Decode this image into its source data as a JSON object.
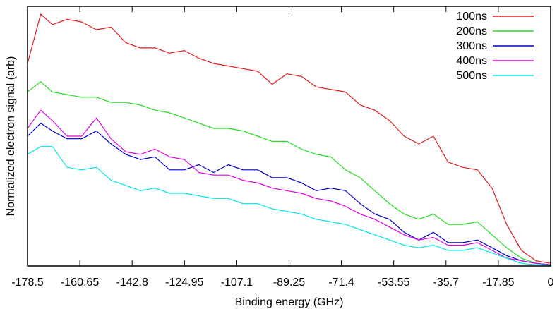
{
  "chart_data": {
    "type": "line",
    "title": "",
    "xlabel": "Binding energy (GHz)",
    "ylabel": "Normalized electron signal (arb)",
    "xlim": [
      -178.5,
      0
    ],
    "ylim": [
      0,
      1.0
    ],
    "x_ticks": [
      -178.5,
      -160.65,
      -142.8,
      -124.95,
      -107.1,
      -89.25,
      -71.4,
      -53.55,
      -35.7,
      -17.85,
      0
    ],
    "x_tick_labels": [
      "-178.5",
      "-160.65",
      "-142.8",
      "-124.95",
      "-107.1",
      "-89.25",
      "-71.4",
      "-53.55",
      "-35.7",
      "-17.85",
      "0"
    ],
    "y_tick_labels_shown": false,
    "grid": false,
    "legend_position": "top-right",
    "x": [
      -178.5,
      -174,
      -170,
      -165,
      -160,
      -155,
      -150,
      -145,
      -140,
      -135,
      -130,
      -125,
      -120,
      -115,
      -110,
      -105,
      -100,
      -95,
      -90,
      -85,
      -80,
      -75,
      -70,
      -65,
      -60,
      -55,
      -50,
      -45,
      -40,
      -35,
      -30,
      -25,
      -20,
      -15,
      -10,
      -5,
      0
    ],
    "series": [
      {
        "name": "100ns",
        "color": "#e31a1c",
        "values": [
          0.78,
          0.97,
          0.93,
          0.95,
          0.94,
          0.91,
          0.92,
          0.86,
          0.84,
          0.84,
          0.82,
          0.83,
          0.8,
          0.78,
          0.77,
          0.76,
          0.75,
          0.7,
          0.74,
          0.73,
          0.69,
          0.68,
          0.67,
          0.62,
          0.6,
          0.56,
          0.5,
          0.47,
          0.5,
          0.4,
          0.38,
          0.37,
          0.3,
          0.16,
          0.06,
          0.02,
          0.01
        ]
      },
      {
        "name": "200ns",
        "color": "#22dd22",
        "values": [
          0.67,
          0.71,
          0.67,
          0.66,
          0.65,
          0.65,
          0.63,
          0.63,
          0.62,
          0.6,
          0.59,
          0.57,
          0.55,
          0.53,
          0.53,
          0.52,
          0.5,
          0.48,
          0.48,
          0.45,
          0.43,
          0.42,
          0.37,
          0.34,
          0.29,
          0.24,
          0.2,
          0.18,
          0.2,
          0.16,
          0.16,
          0.17,
          0.12,
          0.07,
          0.03,
          0.01,
          0.005
        ]
      },
      {
        "name": "300ns",
        "color": "#0000cc",
        "values": [
          0.5,
          0.55,
          0.52,
          0.49,
          0.49,
          0.52,
          0.47,
          0.43,
          0.41,
          0.42,
          0.37,
          0.37,
          0.39,
          0.36,
          0.39,
          0.37,
          0.37,
          0.34,
          0.34,
          0.32,
          0.29,
          0.3,
          0.29,
          0.24,
          0.2,
          0.18,
          0.13,
          0.1,
          0.13,
          0.09,
          0.09,
          0.1,
          0.07,
          0.04,
          0.02,
          0.01,
          0.005
        ]
      },
      {
        "name": "400ns",
        "color": "#e000e0",
        "values": [
          0.53,
          0.6,
          0.56,
          0.5,
          0.5,
          0.57,
          0.49,
          0.44,
          0.43,
          0.45,
          0.42,
          0.41,
          0.36,
          0.35,
          0.35,
          0.33,
          0.32,
          0.3,
          0.29,
          0.28,
          0.26,
          0.25,
          0.23,
          0.2,
          0.18,
          0.15,
          0.12,
          0.1,
          0.11,
          0.08,
          0.08,
          0.09,
          0.06,
          0.03,
          0.02,
          0.01,
          0.005
        ]
      },
      {
        "name": "500ns",
        "color": "#00e5e5",
        "values": [
          0.43,
          0.46,
          0.46,
          0.38,
          0.37,
          0.38,
          0.33,
          0.31,
          0.29,
          0.3,
          0.28,
          0.28,
          0.27,
          0.26,
          0.26,
          0.24,
          0.24,
          0.22,
          0.21,
          0.2,
          0.18,
          0.17,
          0.16,
          0.14,
          0.12,
          0.1,
          0.08,
          0.07,
          0.08,
          0.06,
          0.06,
          0.07,
          0.05,
          0.03,
          0.01,
          0.005,
          0.003
        ]
      }
    ]
  }
}
